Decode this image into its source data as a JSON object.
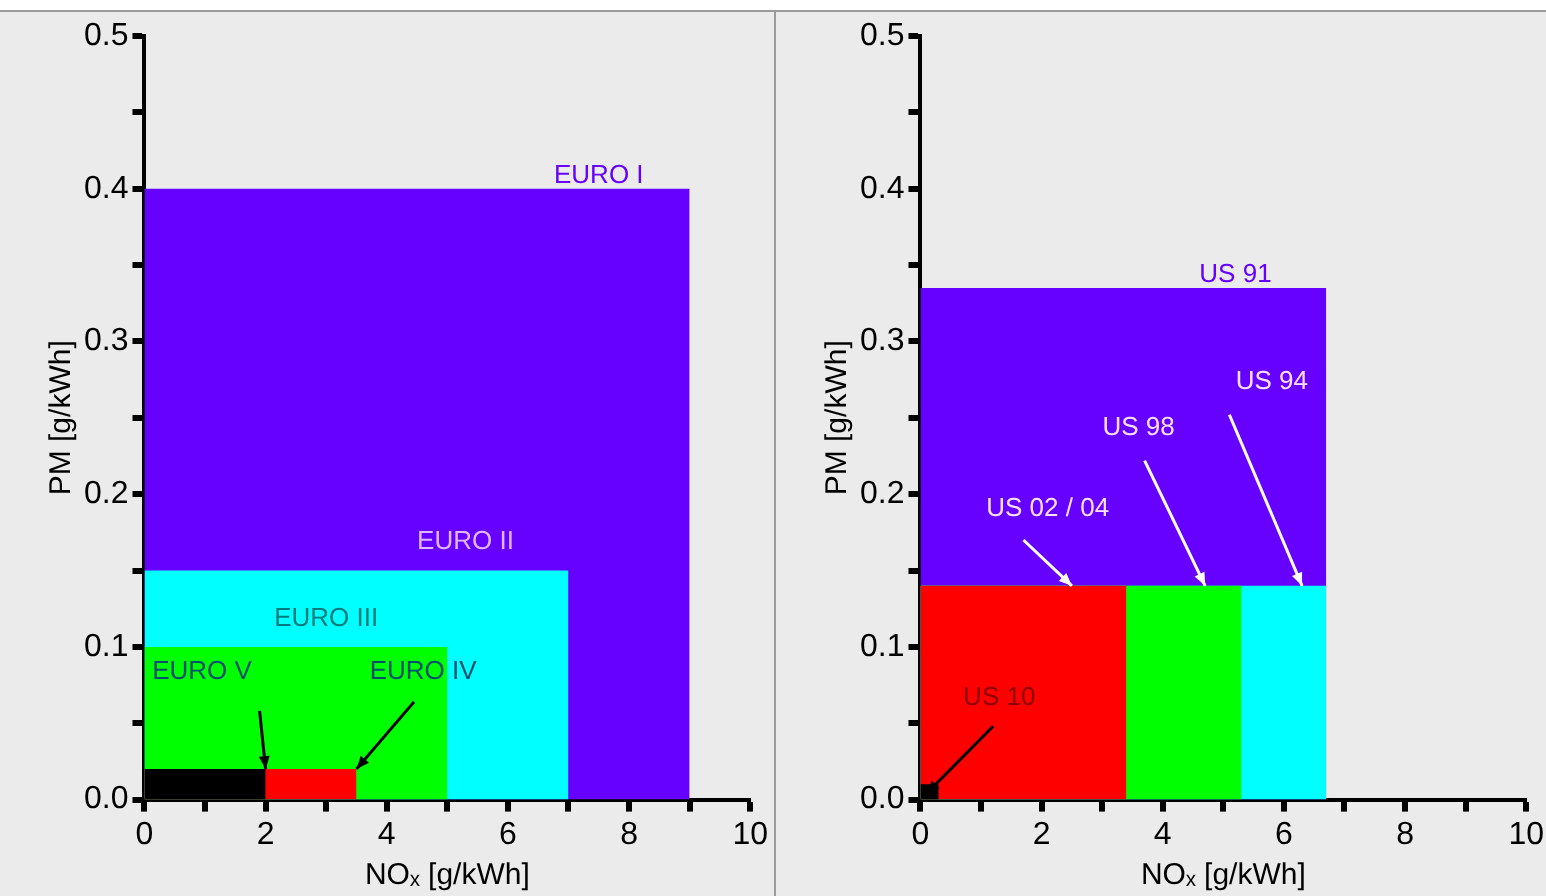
{
  "chart_data": [
    {
      "type": "area",
      "xlabel": "NOₓ [g/kWh]",
      "ylabel": "PM [g/kWh]",
      "xlim": [
        0,
        10
      ],
      "ylim": [
        0,
        0.5
      ],
      "xticks": [
        0,
        {
          "value": 1,
          "label": null
        },
        2,
        {
          "value": 3,
          "label": null
        },
        4,
        {
          "value": 5,
          "label": null
        },
        6,
        {
          "value": 7,
          "label": null
        },
        8,
        {
          "value": 9,
          "label": null
        },
        10
      ],
      "yticks": [
        {
          "value": 0,
          "label": "0.0"
        },
        {
          "value": 0.05,
          "label": null
        },
        {
          "value": 0.1,
          "label": "0.1"
        },
        {
          "value": 0.15,
          "label": null
        },
        {
          "value": 0.2,
          "label": "0.2"
        },
        {
          "value": 0.25,
          "label": null
        },
        {
          "value": 0.3,
          "label": "0.3"
        },
        {
          "value": 0.35,
          "label": null
        },
        {
          "value": 0.4,
          "label": "0.4"
        },
        {
          "value": 0.45,
          "label": null
        },
        {
          "value": 0.5,
          "label": "0.5"
        }
      ],
      "series": [
        {
          "name": "EURO I",
          "color": "#6600ff",
          "x": [
            0,
            9
          ],
          "values": [
            0.4,
            0.4
          ]
        },
        {
          "name": "EURO II",
          "color": "#00ffff",
          "x": [
            0,
            7
          ],
          "values": [
            0.15,
            0.15
          ]
        },
        {
          "name": "EURO III",
          "color": "#00ff00",
          "x": [
            0,
            5
          ],
          "values": [
            0.1,
            0.1
          ]
        },
        {
          "name": "EURO IV",
          "color": "#ff0000",
          "x": [
            0,
            3.5
          ],
          "values": [
            0.02,
            0.02
          ]
        },
        {
          "name": "EURO V",
          "color": "#000000",
          "x": [
            0,
            2
          ],
          "values": [
            0.02,
            0.02
          ]
        }
      ]
    },
    {
      "type": "area",
      "xlabel": "NOₓ [g/kWh]",
      "ylabel": "PM [g/kWh]",
      "xlim": [
        0,
        10
      ],
      "ylim": [
        0,
        0.5
      ],
      "xticks": [
        0,
        {
          "value": 1,
          "label": null
        },
        2,
        {
          "value": 3,
          "label": null
        },
        4,
        {
          "value": 5,
          "label": null
        },
        6,
        {
          "value": 7,
          "label": null
        },
        8,
        {
          "value": 9,
          "label": null
        },
        10
      ],
      "yticks": [
        {
          "value": 0,
          "label": "0.0"
        },
        {
          "value": 0.05,
          "label": null
        },
        {
          "value": 0.1,
          "label": "0.1"
        },
        {
          "value": 0.15,
          "label": null
        },
        {
          "value": 0.2,
          "label": "0.2"
        },
        {
          "value": 0.25,
          "label": null
        },
        {
          "value": 0.3,
          "label": "0.3"
        },
        {
          "value": 0.35,
          "label": null
        },
        {
          "value": 0.4,
          "label": "0.4"
        },
        {
          "value": 0.45,
          "label": null
        },
        {
          "value": 0.5,
          "label": "0.5"
        }
      ],
      "series": [
        {
          "name": "US 91",
          "color": "#6600ff",
          "x": [
            0,
            6.7
          ],
          "values": [
            0.335,
            0.335
          ]
        },
        {
          "name": "US 94",
          "color": "#00ffff",
          "x": [
            0,
            6.7
          ],
          "values": [
            0.14,
            0.14
          ]
        },
        {
          "name": "US 98",
          "color": "#00ff00",
          "x": [
            0,
            5.3
          ],
          "values": [
            0.14,
            0.14
          ]
        },
        {
          "name": "US 02 / 04",
          "color": "#ff0000",
          "x": [
            0,
            3.4
          ],
          "values": [
            0.14,
            0.14
          ]
        },
        {
          "name": "US 10",
          "color": "#000000",
          "x": [
            0,
            0.3
          ],
          "values": [
            0.01,
            0.01
          ]
        }
      ]
    }
  ]
}
